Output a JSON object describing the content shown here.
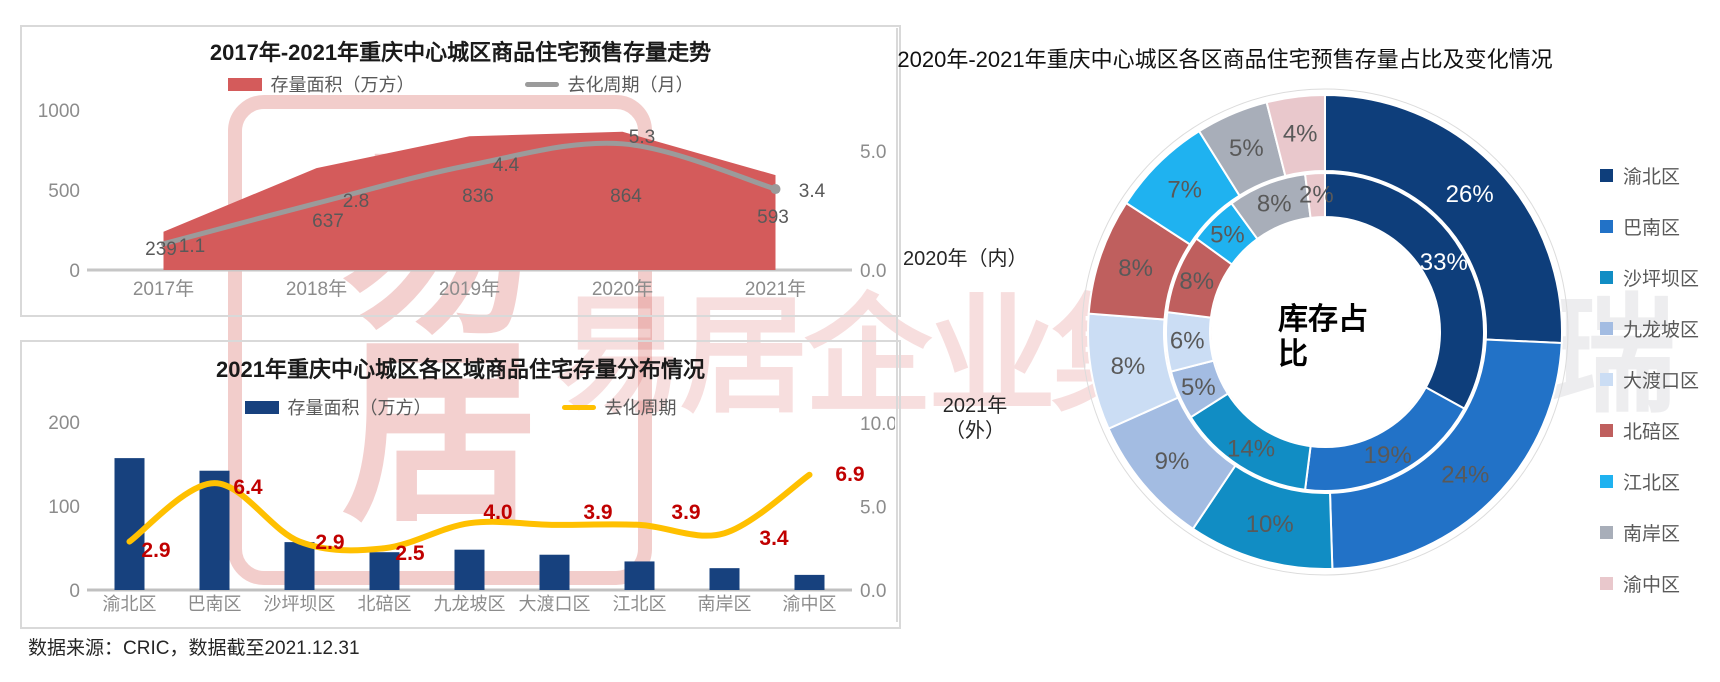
{
  "source_note": "数据来源：CRIC，数据截至2021.12.31",
  "watermark": {
    "seal_top": "易",
    "seal_bottom": "居",
    "brand_red": "易居企业集团",
    "brand_gray": "克而瑞"
  },
  "chart_data": [
    {
      "type": "area",
      "title": "2017年-2021年重庆中心城区商品住宅预售存量走势",
      "categories": [
        "2017年",
        "2018年",
        "2019年",
        "2020年",
        "2021年"
      ],
      "series": [
        {
          "name": "存量面积（万方）",
          "type": "area",
          "axis": "left",
          "color": "#D45B5B",
          "values": [
            239,
            637,
            836,
            864,
            593
          ]
        },
        {
          "name": "去化周期（月）",
          "type": "line",
          "axis": "right",
          "color": "#9B9B9B",
          "values": [
            1.1,
            2.8,
            4.4,
            5.3,
            3.4
          ]
        }
      ],
      "left_axis": {
        "min": 0,
        "max": 1000,
        "ticks": [
          {
            "label": "1000",
            "value": 1000
          },
          {
            "label": "500",
            "value": 500
          },
          {
            "label": "0",
            "value": 0
          }
        ]
      },
      "right_axis": {
        "min": 0,
        "max": 6.72,
        "ticks": [
          {
            "label": "5.0",
            "value": 5
          },
          {
            "label": "0.0",
            "value": 0
          }
        ]
      },
      "grid": false,
      "legend_position": "top"
    },
    {
      "type": "bar",
      "title": "2021年重庆中心城区各区域商品住宅存量分布情况",
      "categories": [
        "渝北区",
        "巴南区",
        "沙坪坝区",
        "北碚区",
        "九龙坡区",
        "大渡口区",
        "江北区",
        "南岸区",
        "渝中区"
      ],
      "series": [
        {
          "name": "存量面积（万方）",
          "type": "bar",
          "axis": "left",
          "color": "#17417E",
          "values": [
            157,
            142,
            57,
            45,
            48,
            42,
            34,
            26,
            18
          ]
        },
        {
          "name": "去化周期",
          "type": "line",
          "axis": "right",
          "color": "#FFC000",
          "label_color": "#C00000",
          "values": [
            2.9,
            6.4,
            2.9,
            2.5,
            4.0,
            3.9,
            3.9,
            3.4,
            6.9
          ]
        }
      ],
      "left_axis": {
        "min": 0,
        "max": 200,
        "ticks": [
          {
            "label": "200",
            "value": 200
          },
          {
            "label": "100",
            "value": 100
          },
          {
            "label": "0",
            "value": 0
          }
        ]
      },
      "right_axis": {
        "min": 0,
        "max": 10,
        "ticks": [
          {
            "label": "10.0",
            "value": 10
          },
          {
            "label": "5.0",
            "value": 5
          },
          {
            "label": "0.0",
            "value": 0
          }
        ]
      },
      "grid": false,
      "legend_position": "top"
    },
    {
      "type": "pie",
      "title": "2020年-2021年重庆中心城区各区商品住宅预售存量占比及变化情况",
      "center_label": "库存占比",
      "inner_ring_label": "2020年（内）",
      "outer_ring_label_line1": "2021年",
      "outer_ring_label_line2": "（外）",
      "categories": [
        "渝北区",
        "巴南区",
        "沙坪坝区",
        "九龙坡区",
        "大渡口区",
        "北碚区",
        "江北区",
        "南岸区",
        "渝中区"
      ],
      "colors": [
        "#0E3E7B",
        "#2272C7",
        "#118DC4",
        "#A3BCE2",
        "#CBDDF4",
        "#BF5F5E",
        "#1FB2F0",
        "#A8AEB9",
        "#E9C8CC"
      ],
      "rings": [
        {
          "name": "2020年（内）",
          "position": "inner",
          "values": [
            33,
            19,
            14,
            5,
            6,
            8,
            5,
            8,
            2
          ]
        },
        {
          "name": "2021年（外）",
          "position": "outer",
          "values": [
            26,
            24,
            10,
            9,
            8,
            8,
            7,
            5,
            4
          ]
        }
      ],
      "legend_position": "right"
    }
  ]
}
